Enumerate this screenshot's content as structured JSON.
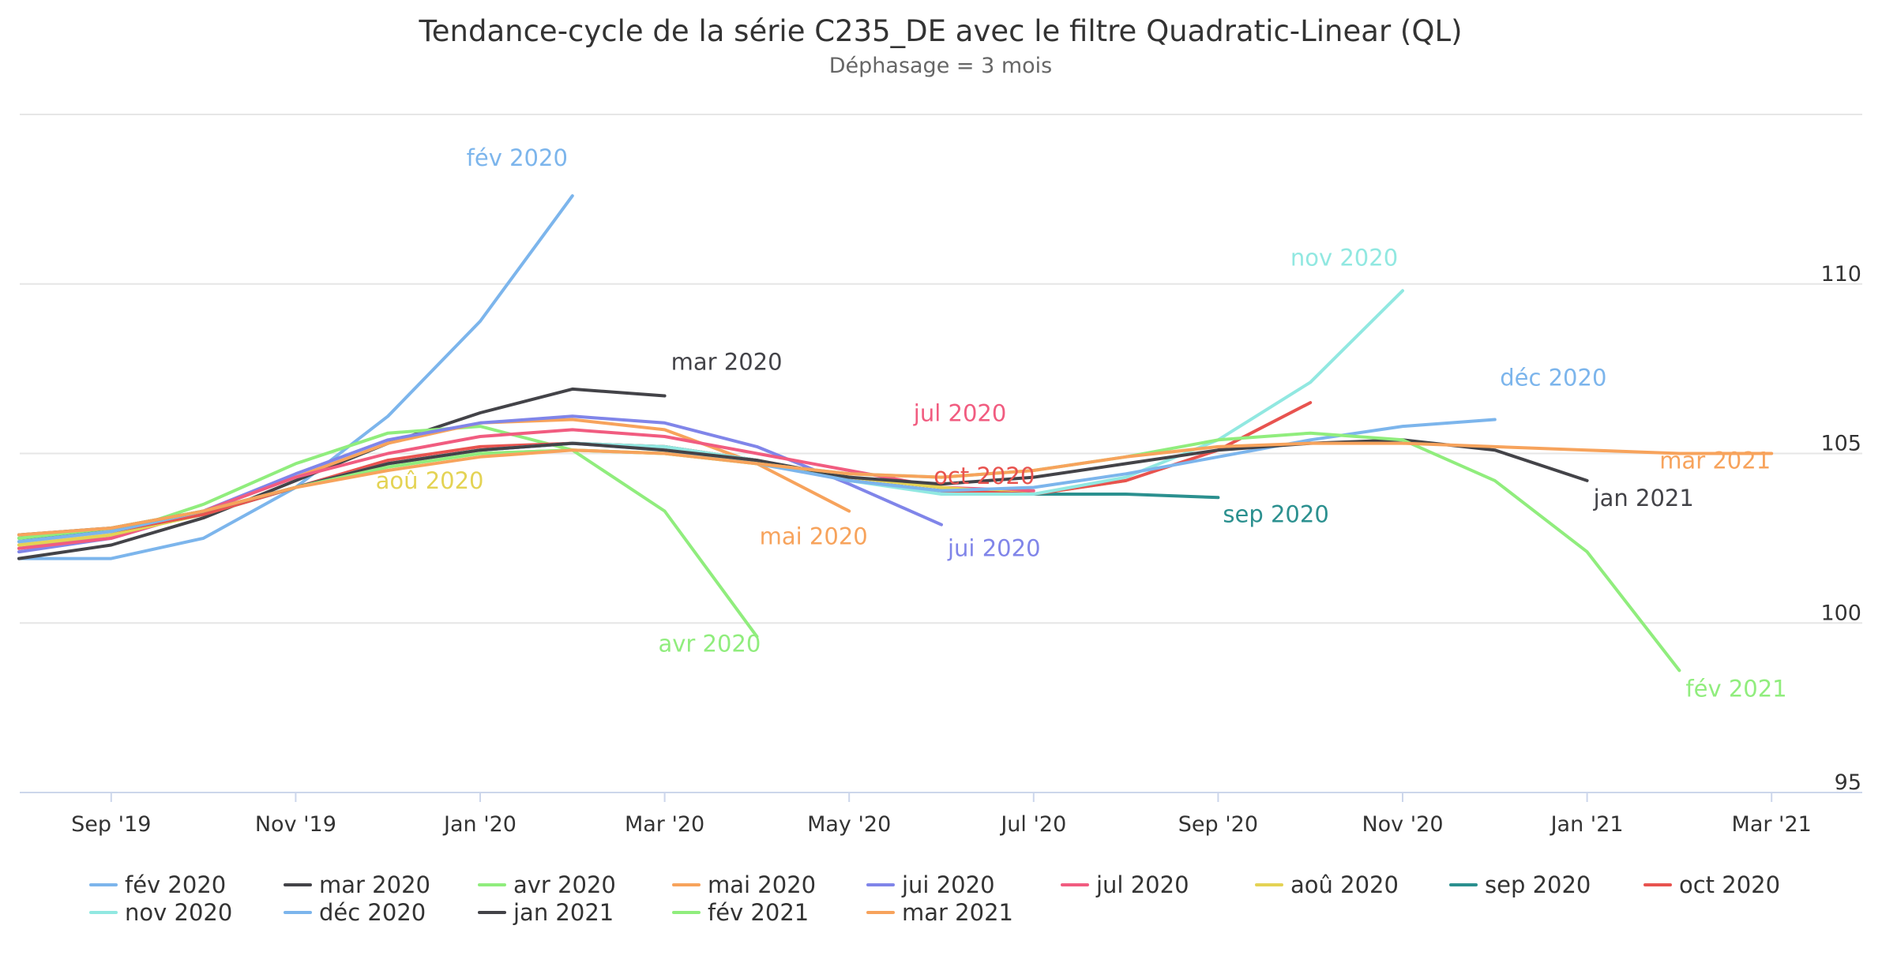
{
  "chart_data": {
    "type": "line",
    "title": "Tendance-cycle de la série C235_DE avec le filtre Quadratic-Linear (QL)",
    "subtitle": "Déphasage = 3 mois",
    "xlabel": "",
    "ylabel": "",
    "x_range": [
      "2019-08",
      "2021-03"
    ],
    "ylim": [
      95,
      115
    ],
    "y_ticks": [
      95,
      100,
      105,
      110
    ],
    "x_ticks": [
      {
        "month": "2019-09",
        "label": "Sep '19"
      },
      {
        "month": "2019-11",
        "label": "Nov '19"
      },
      {
        "month": "2020-01",
        "label": "Jan '20"
      },
      {
        "month": "2020-03",
        "label": "Mar '20"
      },
      {
        "month": "2020-05",
        "label": "May '20"
      },
      {
        "month": "2020-07",
        "label": "Jul '20"
      },
      {
        "month": "2020-09",
        "label": "Sep '20"
      },
      {
        "month": "2020-11",
        "label": "Nov '20"
      },
      {
        "month": "2021-01",
        "label": "Jan '21"
      },
      {
        "month": "2021-03",
        "label": "Mar '21"
      }
    ],
    "grid": true,
    "legend_position": "bottom",
    "series": [
      {
        "name": "fév 2020",
        "color": "#7cb5ec",
        "start": "2019-08",
        "values": [
          101.9,
          101.9,
          102.5,
          104.0,
          106.1,
          108.9,
          112.6
        ]
      },
      {
        "name": "mar 2020",
        "color": "#434348",
        "start": "2019-08",
        "values": [
          101.9,
          102.3,
          103.1,
          104.2,
          105.3,
          106.2,
          106.9,
          106.7
        ]
      },
      {
        "name": "avr 2020",
        "color": "#90ed7d",
        "start": "2019-08",
        "values": [
          102.2,
          102.6,
          103.5,
          104.7,
          105.6,
          105.8,
          105.1,
          103.3,
          99.6
        ]
      },
      {
        "name": "mai 2020",
        "color": "#f7a35c",
        "start": "2019-08",
        "values": [
          102.3,
          102.6,
          103.3,
          104.3,
          105.3,
          105.9,
          106.0,
          105.7,
          104.7,
          103.3
        ]
      },
      {
        "name": "jui 2020",
        "color": "#8085e9",
        "start": "2019-08",
        "values": [
          102.1,
          102.5,
          103.3,
          104.4,
          105.4,
          105.9,
          106.1,
          105.9,
          105.2,
          104.1,
          102.9
        ]
      },
      {
        "name": "jul 2020",
        "color": "#f15c80",
        "start": "2019-08",
        "values": [
          102.2,
          102.5,
          103.3,
          104.3,
          105.0,
          105.5,
          105.7,
          105.5,
          105.0,
          104.5,
          104.0,
          103.9
        ]
      },
      {
        "name": "aoû 2020",
        "color": "#e4d354",
        "start": "2019-08",
        "values": [
          102.3,
          102.6,
          103.2,
          104.0,
          104.6,
          105.0,
          105.1,
          105.0,
          104.7,
          104.3,
          104.0,
          103.8,
          104.2
        ]
      },
      {
        "name": "sep 2020",
        "color": "#2b908f",
        "start": "2019-08",
        "values": [
          102.5,
          102.7,
          103.2,
          104.0,
          104.7,
          105.1,
          105.3,
          105.2,
          104.8,
          104.2,
          103.9,
          103.8,
          103.8,
          103.7
        ]
      },
      {
        "name": "oct 2020",
        "color": "#e8534f",
        "start": "2019-08",
        "values": [
          102.4,
          102.7,
          103.2,
          104.0,
          104.8,
          105.2,
          105.3,
          105.2,
          104.8,
          104.2,
          103.9,
          103.8,
          104.2,
          105.1,
          106.5
        ]
      },
      {
        "name": "nov 2020",
        "color": "#91e8e1",
        "start": "2019-08",
        "values": [
          102.4,
          102.7,
          103.3,
          104.0,
          104.7,
          105.1,
          105.3,
          105.2,
          104.8,
          104.2,
          103.8,
          103.8,
          104.3,
          105.4,
          107.1,
          109.8
        ]
      },
      {
        "name": "déc 2020",
        "color": "#7cb5ec",
        "start": "2019-08",
        "values": [
          102.4,
          102.7,
          103.3,
          104.0,
          104.7,
          105.1,
          105.3,
          105.1,
          104.7,
          104.2,
          103.9,
          104.0,
          104.4,
          104.9,
          105.4,
          105.8,
          106.0
        ]
      },
      {
        "name": "jan 2021",
        "color": "#434348",
        "start": "2019-08",
        "values": [
          102.6,
          102.8,
          103.3,
          104.0,
          104.7,
          105.1,
          105.3,
          105.1,
          104.8,
          104.3,
          104.1,
          104.3,
          104.7,
          105.1,
          105.3,
          105.4,
          105.1,
          104.2
        ]
      },
      {
        "name": "fév 2021",
        "color": "#90ed7d",
        "start": "2019-08",
        "values": [
          102.5,
          102.8,
          103.3,
          104.0,
          104.6,
          105.0,
          105.1,
          105.0,
          104.7,
          104.4,
          104.3,
          104.5,
          104.9,
          105.4,
          105.6,
          105.4,
          104.2,
          102.1,
          98.6
        ]
      },
      {
        "name": "mar 2021",
        "color": "#f7a35c",
        "start": "2019-08",
        "values": [
          102.6,
          102.8,
          103.3,
          104.0,
          104.5,
          104.9,
          105.1,
          105.0,
          104.7,
          104.4,
          104.3,
          104.5,
          104.9,
          105.2,
          105.3,
          105.3,
          105.2,
          105.1,
          105.0,
          105.0
        ]
      }
    ],
    "annotations": [
      {
        "text": "fév 2020",
        "series": "fév 2020"
      },
      {
        "text": "mar 2020",
        "series": "mar 2020"
      },
      {
        "text": "avr 2020",
        "series": "avr 2020"
      },
      {
        "text": "mai 2020",
        "series": "mai 2020"
      },
      {
        "text": "jui 2020",
        "series": "jui 2020"
      },
      {
        "text": "jul 2020",
        "series": "jul 2020"
      },
      {
        "text": "aoû 2020",
        "series": "aoû 2020"
      },
      {
        "text": "sep 2020",
        "series": "sep 2020"
      },
      {
        "text": "oct 2020",
        "series": "oct 2020"
      },
      {
        "text": "nov 2020",
        "series": "nov 2020"
      },
      {
        "text": "déc 2020",
        "series": "déc 2020"
      },
      {
        "text": "jan 2021",
        "series": "jan 2021"
      },
      {
        "text": "fév 2021",
        "series": "fév 2021"
      },
      {
        "text": "mar 2021",
        "series": "mar 2021"
      }
    ]
  }
}
